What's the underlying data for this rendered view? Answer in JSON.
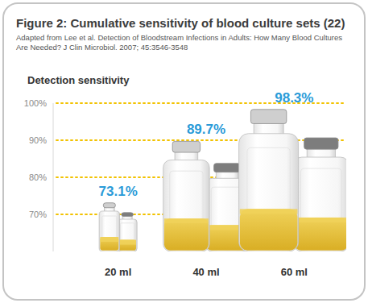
{
  "chart_data": {
    "type": "bar",
    "title": "Figure 2: Cumulative sensitivity of blood culture sets (22)",
    "subtitle": "Adapted from Lee et al. Detection of Bloodstream Infections in Adults: How Many Blood Cultures Are Needed? J Clin Microbiol. 2007; 45:3546-3548",
    "ylabel": "Detection sensitivity",
    "categories": [
      "20 ml",
      "40 ml",
      "60 ml"
    ],
    "values": [
      73.1,
      89.7,
      98.3
    ],
    "value_labels": [
      "73.1%",
      "89.7%",
      "98.3%"
    ],
    "data_labels": true,
    "color": "#f0d25a",
    "ylim": [
      60,
      100
    ],
    "yticks": [
      {
        "value": 70,
        "label": "70%"
      },
      {
        "value": 80,
        "label": "80%"
      },
      {
        "value": 90,
        "label": "90%"
      },
      {
        "value": 100,
        "label": "100%"
      }
    ],
    "grid": true
  }
}
